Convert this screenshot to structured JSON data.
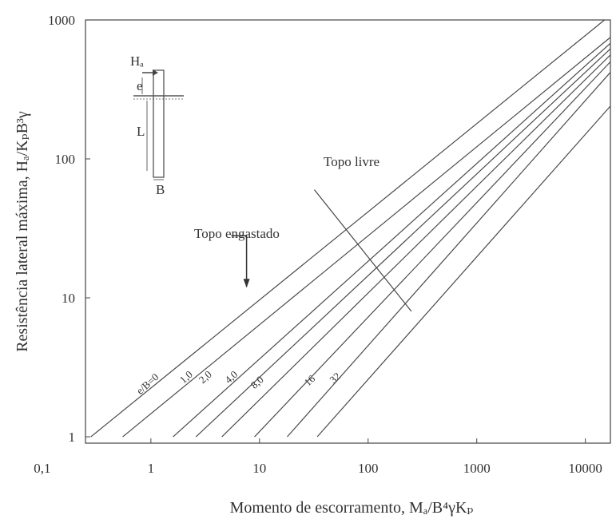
{
  "chart_data": {
    "type": "line",
    "title": "",
    "xlabel": "Momento de escorramento, Mₐ/B⁴γKₚ",
    "ylabel": "Resistência lateral máxima, Hₐ/KₚB³γ",
    "xscale": "log",
    "yscale": "log",
    "xlim": [
      0.25,
      17000
    ],
    "ylim": [
      0.9,
      1000
    ],
    "x_ticks": [
      {
        "value": 0.1,
        "label": "0,1"
      },
      {
        "value": 1,
        "label": "1"
      },
      {
        "value": 10,
        "label": "10"
      },
      {
        "value": 100,
        "label": "100"
      },
      {
        "value": 1000,
        "label": "1000"
      },
      {
        "value": 10000,
        "label": "10000"
      }
    ],
    "y_ticks": [
      {
        "value": 1,
        "label": "1"
      },
      {
        "value": 10,
        "label": "10"
      },
      {
        "value": 100,
        "label": "100"
      },
      {
        "value": 1000,
        "label": "1000"
      }
    ],
    "grid": false,
    "legend": "none",
    "series": [
      {
        "name": "",
        "points": [
          [
            0.28,
            1
          ],
          [
            15000,
            1000
          ]
        ]
      },
      {
        "name": "e/B=0",
        "points": [
          [
            0.55,
            1
          ],
          [
            17000,
            750
          ]
        ]
      },
      {
        "name": "1,0",
        "points": [
          [
            1.6,
            1
          ],
          [
            17000,
            680
          ]
        ]
      },
      {
        "name": "2,0",
        "points": [
          [
            2.6,
            1
          ],
          [
            17000,
            620
          ]
        ]
      },
      {
        "name": "4,0",
        "points": [
          [
            4.5,
            1
          ],
          [
            17000,
            560
          ]
        ]
      },
      {
        "name": "8,0",
        "points": [
          [
            9.0,
            1
          ],
          [
            17000,
            500
          ]
        ]
      },
      {
        "name": "16",
        "points": [
          [
            18,
            1
          ],
          [
            17000,
            420
          ]
        ]
      },
      {
        "name": "32",
        "points": [
          [
            34,
            1
          ],
          [
            17000,
            240
          ]
        ]
      }
    ],
    "annotations": {
      "free_head": "Topo livre",
      "restrained_head": "Topo engastado",
      "free_head_line": [
        [
          32,
          60
        ],
        [
          250,
          8
        ]
      ],
      "restrained_leader": [
        [
          5.5,
          28
        ],
        [
          7.6,
          28
        ],
        [
          7.6,
          12
        ]
      ],
      "inset_labels": {
        "H": "Hₐ",
        "e": "e",
        "L": "L",
        "B": "B"
      }
    }
  }
}
